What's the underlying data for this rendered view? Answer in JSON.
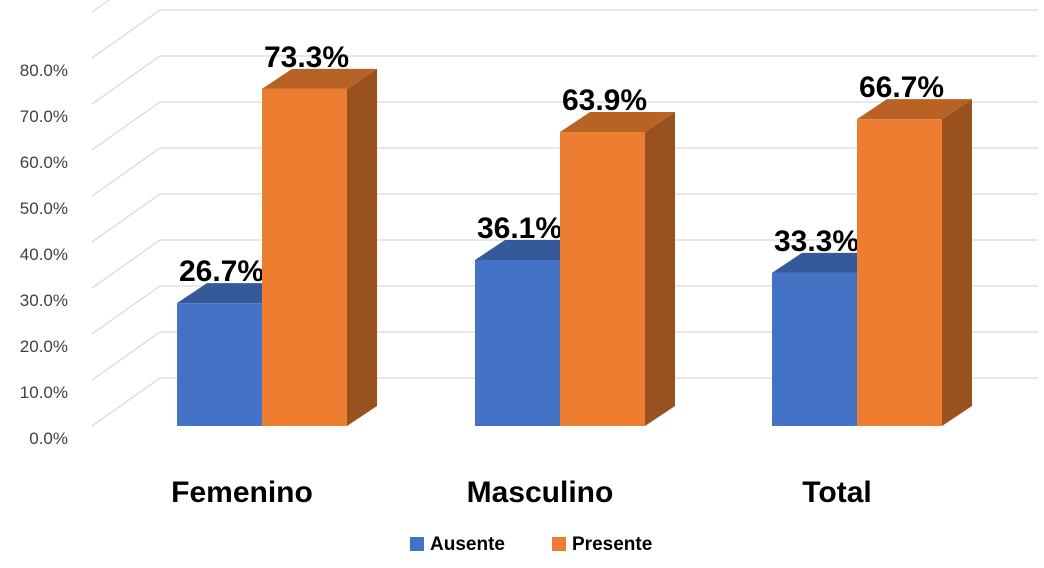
{
  "chart_data": {
    "type": "bar",
    "style": "3d-clustered-column",
    "categories": [
      "Femenino",
      "Masculino",
      "Total"
    ],
    "series": [
      {
        "name": "Ausente",
        "values": [
          26.7,
          36.1,
          33.3
        ],
        "labels": [
          "26.7%",
          "36.1%",
          "33.3%"
        ],
        "color": "#4472C4"
      },
      {
        "name": "Presente",
        "values": [
          73.3,
          63.9,
          66.7
        ],
        "labels": [
          "73.3%",
          "63.9%",
          "66.7%"
        ],
        "color": "#ED7D31"
      }
    ],
    "yticks": [
      "0.0%",
      "10.0%",
      "20.0%",
      "30.0%",
      "40.0%",
      "50.0%",
      "60.0%",
      "70.0%",
      "80.0%"
    ],
    "ylim": [
      0,
      90
    ],
    "grid": true,
    "legend": "bottom-center"
  }
}
